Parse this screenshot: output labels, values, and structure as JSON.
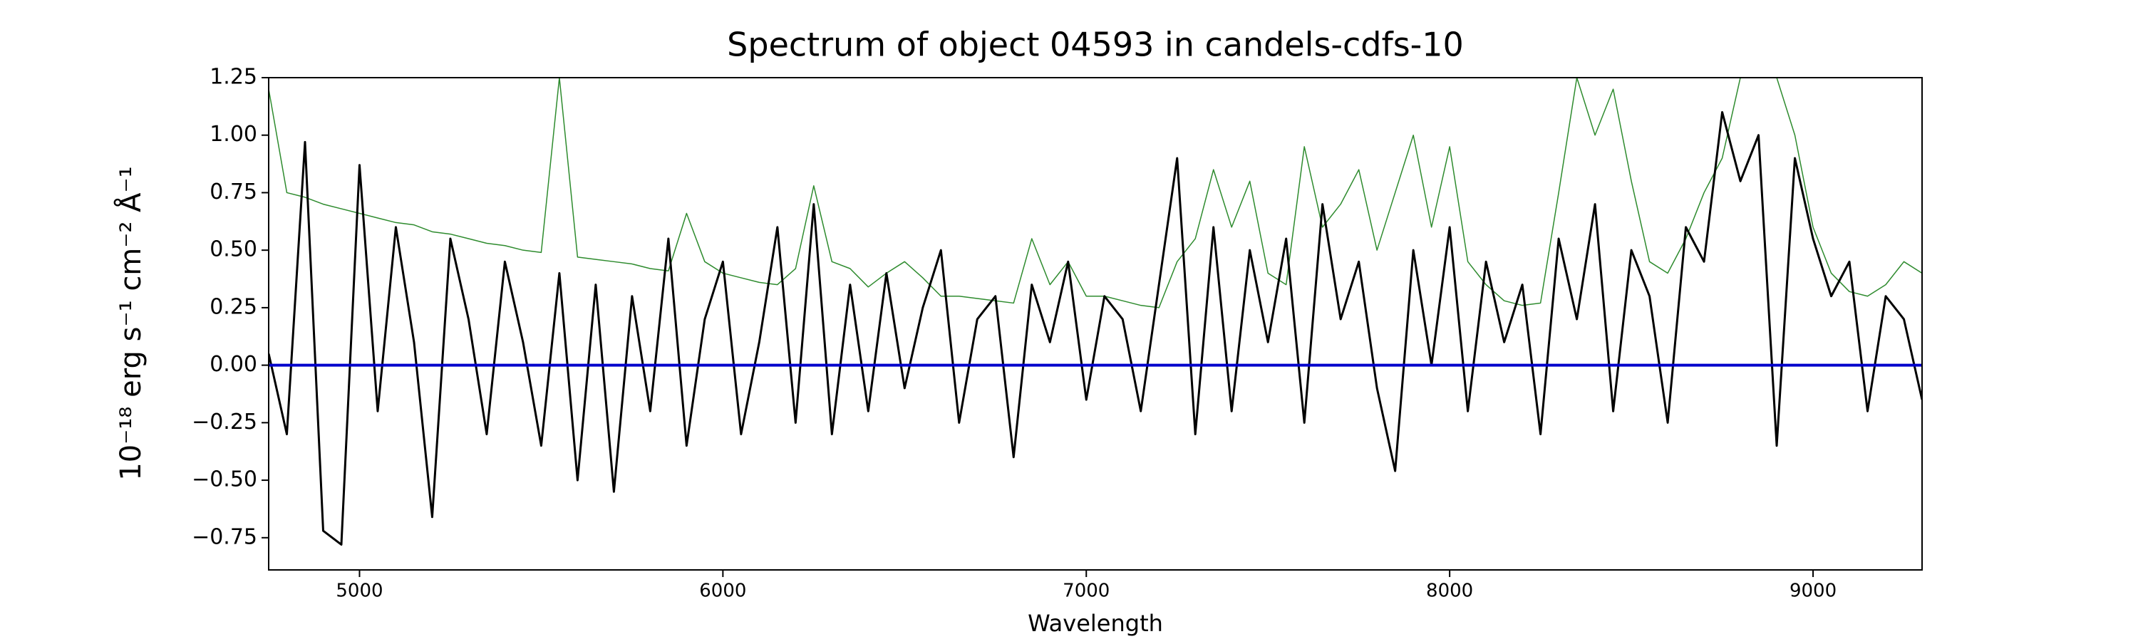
{
  "chart_data": {
    "type": "line",
    "title": "Spectrum of object 04593 in candels-cdfs-10",
    "x_label": "Wavelength",
    "y_label": "10⁻¹⁸ erg s⁻¹ cm⁻² Å⁻¹",
    "x": [
      4750,
      4800,
      4850,
      4900,
      4950,
      5000,
      5050,
      5100,
      5150,
      5200,
      5250,
      5300,
      5350,
      5400,
      5450,
      5500,
      5550,
      5600,
      5650,
      5700,
      5750,
      5800,
      5850,
      5900,
      5950,
      6000,
      6050,
      6100,
      6150,
      6200,
      6250,
      6300,
      6350,
      6400,
      6450,
      6500,
      6550,
      6600,
      6650,
      6700,
      6750,
      6800,
      6850,
      6900,
      6950,
      7000,
      7050,
      7100,
      7150,
      7200,
      7250,
      7300,
      7350,
      7400,
      7450,
      7500,
      7550,
      7600,
      7650,
      7700,
      7750,
      7800,
      7850,
      7900,
      7950,
      8000,
      8050,
      8100,
      8150,
      8200,
      8250,
      8300,
      8350,
      8400,
      8450,
      8500,
      8550,
      8600,
      8650,
      8700,
      8750,
      8800,
      8850,
      8900,
      8950,
      9000,
      9050,
      9100,
      9150,
      9200,
      9250,
      9300
    ],
    "series": [
      {
        "color": "#2e8b2e",
        "width": 1.5,
        "values": [
          1.2,
          0.75,
          0.73,
          0.7,
          0.68,
          0.66,
          0.64,
          0.62,
          0.61,
          0.58,
          0.57,
          0.55,
          0.53,
          0.52,
          0.5,
          0.49,
          1.25,
          0.47,
          0.46,
          0.45,
          0.44,
          0.42,
          0.41,
          0.66,
          0.45,
          0.4,
          0.38,
          0.36,
          0.35,
          0.42,
          0.78,
          0.45,
          0.42,
          0.34,
          0.4,
          0.45,
          0.38,
          0.3,
          0.3,
          0.29,
          0.28,
          0.27,
          0.55,
          0.35,
          0.45,
          0.3,
          0.3,
          0.28,
          0.26,
          0.25,
          0.45,
          0.55,
          0.85,
          0.6,
          0.8,
          0.4,
          0.35,
          0.95,
          0.6,
          0.7,
          0.85,
          0.5,
          0.75,
          1.0,
          0.6,
          0.95,
          0.45,
          0.35,
          0.28,
          0.26,
          0.27,
          0.75,
          1.25,
          1.0,
          1.2,
          0.8,
          0.45,
          0.4,
          0.55,
          0.75,
          0.9,
          1.25,
          1.25,
          1.25,
          1.0,
          0.6,
          0.4,
          0.32,
          0.3,
          0.35,
          0.45,
          0.4
        ]
      },
      {
        "color": "#000000",
        "width": 3,
        "values": [
          0.05,
          -0.3,
          0.97,
          -0.72,
          -0.78,
          0.87,
          -0.2,
          0.6,
          0.1,
          -0.66,
          0.55,
          0.2,
          -0.3,
          0.45,
          0.1,
          -0.35,
          0.4,
          -0.5,
          0.35,
          -0.55,
          0.3,
          -0.2,
          0.55,
          -0.35,
          0.2,
          0.45,
          -0.3,
          0.1,
          0.6,
          -0.25,
          0.7,
          -0.3,
          0.35,
          -0.2,
          0.4,
          -0.1,
          0.25,
          0.5,
          -0.25,
          0.2,
          0.3,
          -0.4,
          0.35,
          0.1,
          0.45,
          -0.15,
          0.3,
          0.2,
          -0.2,
          0.35,
          0.9,
          -0.3,
          0.6,
          -0.2,
          0.5,
          0.1,
          0.55,
          -0.25,
          0.7,
          0.2,
          0.45,
          -0.1,
          -0.46,
          0.5,
          0.0,
          0.6,
          -0.2,
          0.45,
          0.1,
          0.35,
          -0.3,
          0.55,
          0.2,
          0.7,
          -0.2,
          0.5,
          0.3,
          -0.25,
          0.6,
          0.45,
          1.1,
          0.8,
          1.0,
          -0.35,
          0.9,
          0.55,
          0.3,
          0.45,
          -0.2,
          0.3,
          0.2,
          -0.15
        ]
      }
    ],
    "hlines": [
      {
        "y": 0,
        "color": "#0000cc",
        "width": 4
      }
    ],
    "xlim": [
      4750,
      9300
    ],
    "ylim": [
      -0.89,
      1.25
    ],
    "xticks": [
      5000,
      6000,
      7000,
      8000,
      9000
    ],
    "yticks": [
      {
        "value": -0.75,
        "label": "−0.75"
      },
      {
        "value": -0.5,
        "label": "−0.50"
      },
      {
        "value": -0.25,
        "label": "−0.25"
      },
      {
        "value": 0,
        "label": "0.00"
      },
      0.25,
      {
        "value": 0.5,
        "label": "0.50"
      },
      0.75,
      {
        "value": 1,
        "label": "1.00"
      },
      1.25
    ]
  }
}
